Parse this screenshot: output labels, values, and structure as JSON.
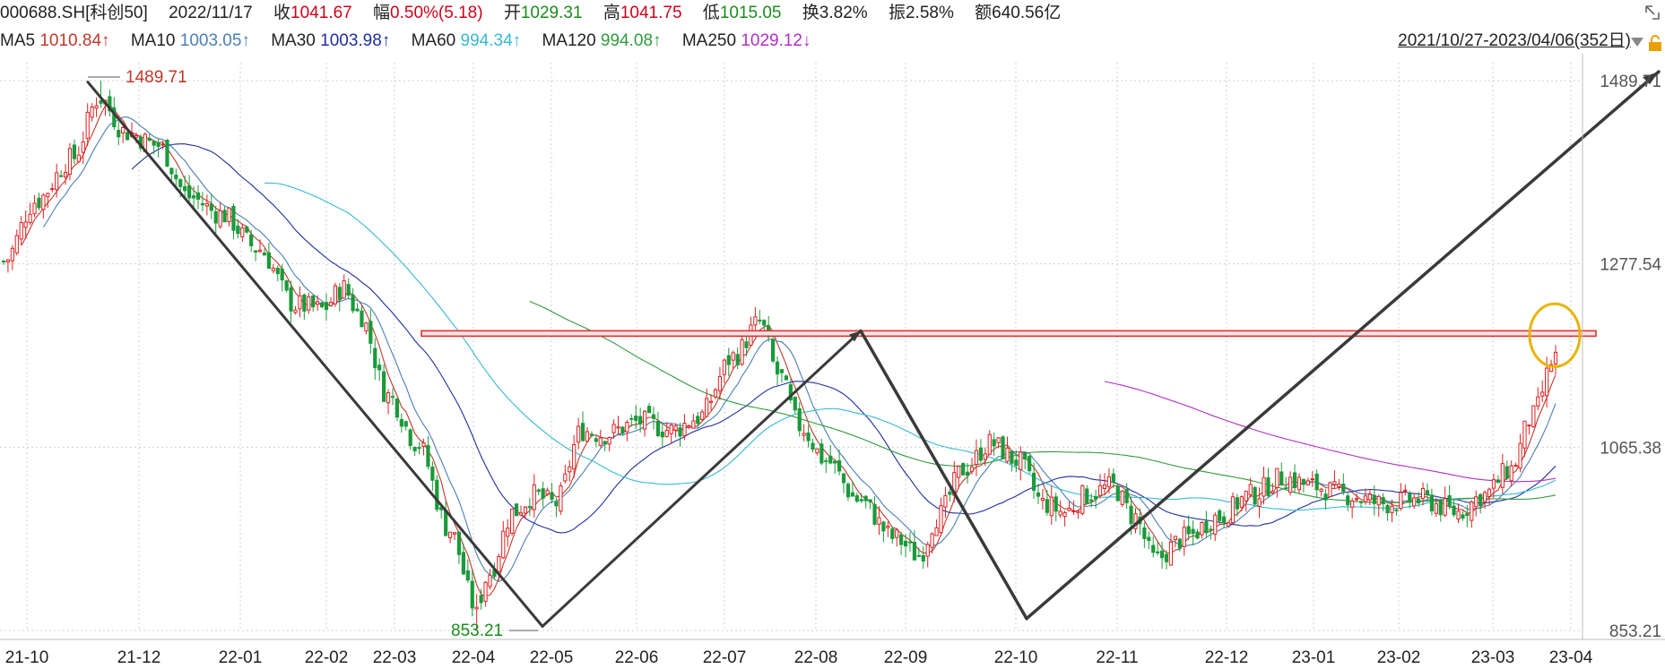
{
  "header": {
    "code": "000688.SH[科创50]",
    "date": "2022/11/17",
    "close_label": "收",
    "close": "1041.67",
    "change_label": "幅",
    "change": "0.50%(5.18)",
    "open_label": "开",
    "open": "1029.31",
    "high_label": "高",
    "high": "1041.75",
    "low_label": "低",
    "low": "1015.05",
    "turnover_label": "换",
    "turnover": "3.82%",
    "amplitude_label": "振",
    "amplitude": "2.58%",
    "amount_label": "额",
    "amount": "640.56亿",
    "date_range": "2021/10/27-2023/04/06(352日)"
  },
  "ma": [
    {
      "name": "MA5",
      "value": "1010.84↑",
      "color": "#c0392b"
    },
    {
      "name": "MA10",
      "value": "1003.05↑",
      "color": "#4a7fb5"
    },
    {
      "name": "MA30",
      "value": "1003.98↑",
      "color": "#1f2f9e"
    },
    {
      "name": "MA60",
      "value": "994.34↑",
      "color": "#35b9d1"
    },
    {
      "name": "MA120",
      "value": "994.08↑",
      "color": "#2e9c3a"
    },
    {
      "name": "MA250",
      "value": "1029.12↓",
      "color": "#b12fc4"
    }
  ],
  "chart_data": {
    "type": "candlestick",
    "y_ticks": [
      "1489.71",
      "1277.54",
      "1065.38",
      "853.21"
    ],
    "ylim": [
      853.21,
      1489.71
    ],
    "x_labels": [
      "21-10",
      "21-12",
      "22-01",
      "22-02",
      "22-03",
      "22-04",
      "22-05",
      "22-06",
      "22-07",
      "22-08",
      "22-09",
      "22-10",
      "22-11",
      "22-12",
      "23-01",
      "23-02",
      "23-03",
      "23-04"
    ],
    "annotations": {
      "high": "1489.71",
      "low": "853.21"
    },
    "resistance_level": 1197,
    "colors": {
      "up": "#e02020",
      "down": "#1a9a3a",
      "grid": "#cfcfcf",
      "highlight": "#e8b400",
      "trend": "#3a3a3a",
      "resistance": "#e23030"
    },
    "monthly_close": [
      {
        "month": "21-10",
        "close": 1360
      },
      {
        "month": "21-11",
        "close": 1430
      },
      {
        "month": "21-12",
        "close": 1440
      },
      {
        "month": "22-01",
        "close": 1320
      },
      {
        "month": "22-02",
        "close": 1240
      },
      {
        "month": "22-03",
        "close": 1150
      },
      {
        "month": "22-04",
        "close": 870
      },
      {
        "month": "22-05",
        "close": 1000
      },
      {
        "month": "22-06",
        "close": 1100
      },
      {
        "month": "22-07",
        "close": 1110
      },
      {
        "month": "22-08",
        "close": 1120
      },
      {
        "month": "22-09",
        "close": 950
      },
      {
        "month": "22-10",
        "close": 1040
      },
      {
        "month": "22-11",
        "close": 1030
      },
      {
        "month": "22-12",
        "close": 985
      },
      {
        "month": "23-01",
        "close": 1010
      },
      {
        "month": "23-02",
        "close": 990
      },
      {
        "month": "23-03",
        "close": 1120
      }
    ]
  }
}
